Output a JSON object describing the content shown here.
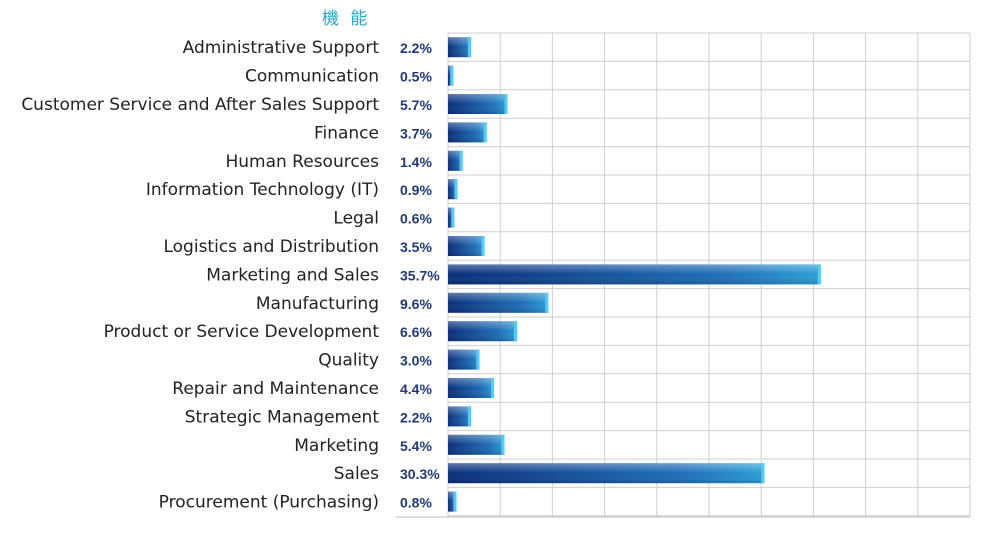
{
  "chart_data": {
    "type": "bar",
    "orientation": "horizontal",
    "title": "機 能",
    "categories": [
      "Administrative Support",
      "Communication",
      "Customer Service and After Sales Support",
      "Finance",
      "Human Resources",
      "Information Technology (IT)",
      "Legal",
      "Logistics and Distribution",
      "Marketing and Sales",
      "Manufacturing",
      "Product or Service Development",
      "Quality",
      "Repair and Maintenance",
      "Strategic Management",
      "Marketing",
      "Sales",
      "Procurement (Purchasing)"
    ],
    "values": [
      2.2,
      0.5,
      5.7,
      3.7,
      1.4,
      0.9,
      0.6,
      3.5,
      35.7,
      9.6,
      6.6,
      3.0,
      4.4,
      2.2,
      5.4,
      30.3,
      0.8
    ],
    "value_labels": [
      "2.2%",
      "0.5%",
      "5.7%",
      "3.7%",
      "1.4%",
      "0.9%",
      "0.6%",
      "3.5%",
      "35.7%",
      "9.6%",
      "6.6%",
      "3.0%",
      "4.4%",
      "2.2%",
      "5.4%",
      "30.3%",
      "0.8%"
    ],
    "xlim": [
      0,
      50
    ],
    "grid": true,
    "legend": "none",
    "colors": {
      "bar_dark": "#0a2e7a",
      "bar_light": "#2a9fd6",
      "label": "#1f3a78",
      "title": "#2aa7c9"
    }
  }
}
